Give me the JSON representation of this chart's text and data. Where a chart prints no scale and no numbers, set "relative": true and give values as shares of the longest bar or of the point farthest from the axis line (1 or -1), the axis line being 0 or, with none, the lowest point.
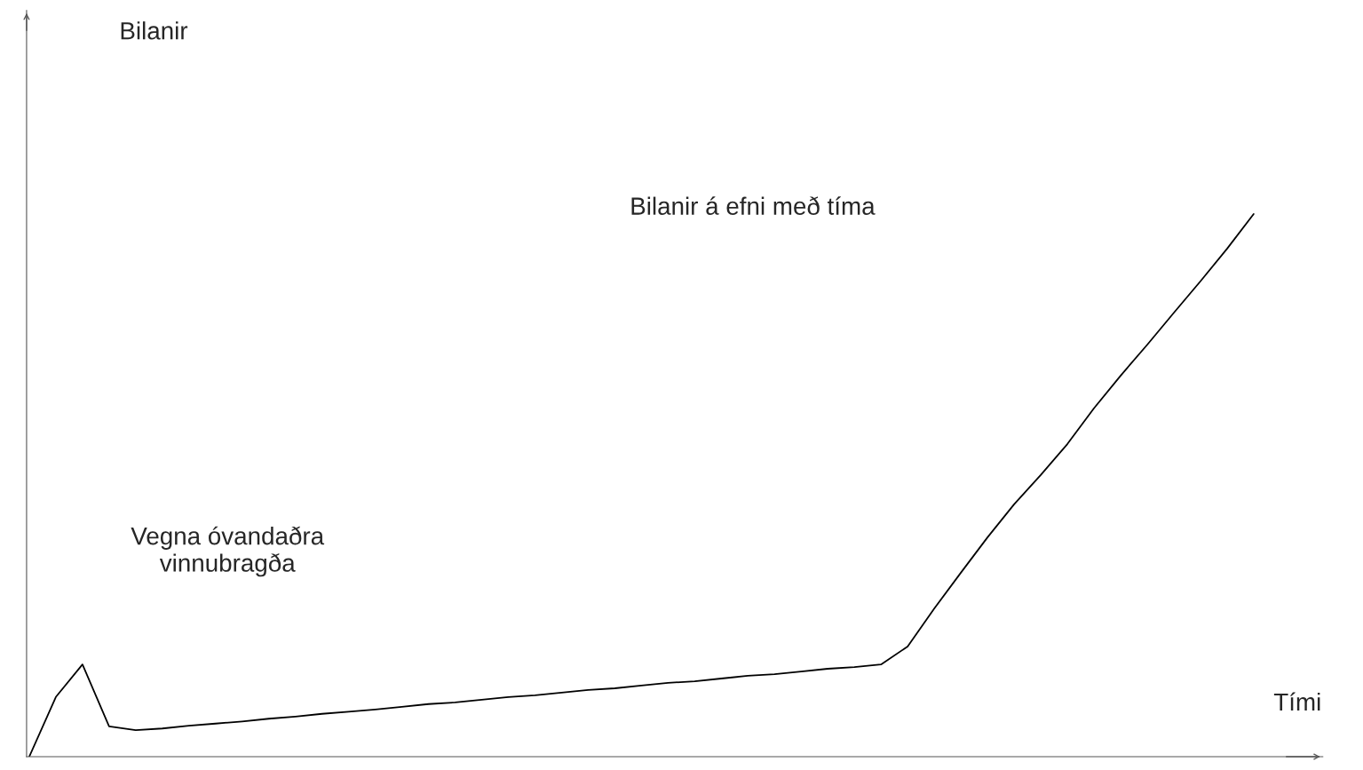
{
  "chart_data": {
    "type": "line",
    "relative": true,
    "xlabel": "Tími",
    "marker": "none",
    "line_style": "solid",
    "annotations": [
      "Bilanir",
      "Bilanir á efni með tíma",
      "Vegna óvandaðra\nvinnubragða"
    ],
    "categories": [
      null,
      null,
      null,
      null,
      null,
      null,
      null,
      null,
      null,
      null,
      null,
      null,
      null,
      null,
      null,
      null,
      null,
      null,
      null,
      null,
      null,
      null,
      null,
      null,
      null,
      null,
      null,
      null,
      null,
      null,
      null,
      null,
      null,
      null,
      null,
      null,
      null,
      null,
      null,
      null,
      null,
      null,
      null,
      null,
      null,
      null,
      null
    ],
    "series": [
      {
        "color": "#000000",
        "values": [
          0,
          0.11,
          0.17,
          0.056,
          0.049,
          0.052,
          0.057,
          0.061,
          0.065,
          0.07,
          0.074,
          0.079,
          0.083,
          0.087,
          0.092,
          0.097,
          0.1,
          0.105,
          0.11,
          0.113,
          0.118,
          0.123,
          0.126,
          0.131,
          0.136,
          0.139,
          0.144,
          0.149,
          0.152,
          0.157,
          0.162,
          0.165,
          0.17,
          0.203,
          0.273,
          0.339,
          0.404,
          0.465,
          0.519,
          0.576,
          0.642,
          0.702,
          0.759,
          0.818,
          0.876,
          0.936,
          1.0
        ]
      }
    ]
  }
}
